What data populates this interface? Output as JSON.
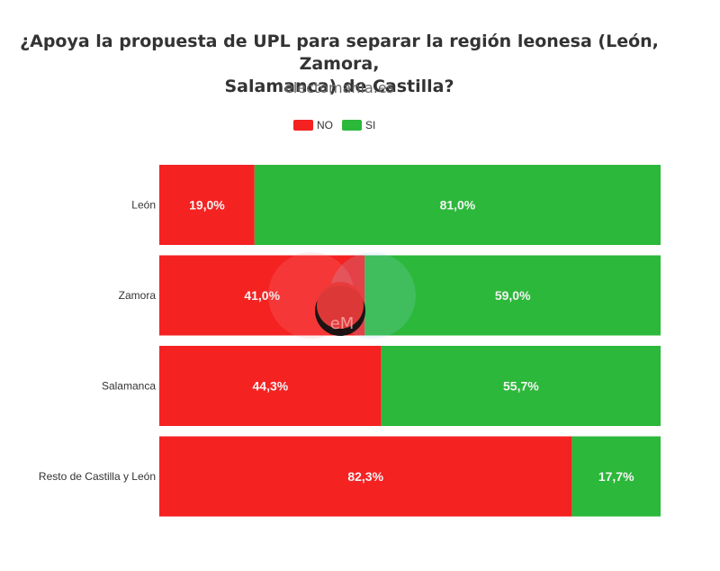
{
  "title_line1": "¿Apoya la propuesta de UPL para separar la región leonesa (León, Zamora,",
  "title_line2": "Salamanca) de Castilla?",
  "subtitle": "electomania.es",
  "watermark_text": "eM",
  "colors": {
    "no": "#f52222",
    "si": "#2cb83a"
  },
  "chart_data": {
    "type": "bar",
    "orientation": "horizontal",
    "stacked": true,
    "percent": true,
    "title": "¿Apoya la propuesta de UPL para separar la región leonesa (León, Zamora, Salamanca) de Castilla?",
    "legend_position": "top",
    "categories": [
      "León",
      "Zamora",
      "Salamanca",
      "Resto de Castilla y León"
    ],
    "series": [
      {
        "name": "NO",
        "color": "#f52222",
        "values": [
          19.0,
          41.0,
          44.3,
          82.3
        ],
        "labels": [
          "19,0%",
          "41,0%",
          "44,3%",
          "82,3%"
        ]
      },
      {
        "name": "SI",
        "color": "#2cb83a",
        "values": [
          81.0,
          59.0,
          55.7,
          17.7
        ],
        "labels": [
          "81,0%",
          "59,0%",
          "55,7%",
          "17,7%"
        ]
      }
    ],
    "xlim": [
      0,
      100
    ],
    "grid": false
  }
}
